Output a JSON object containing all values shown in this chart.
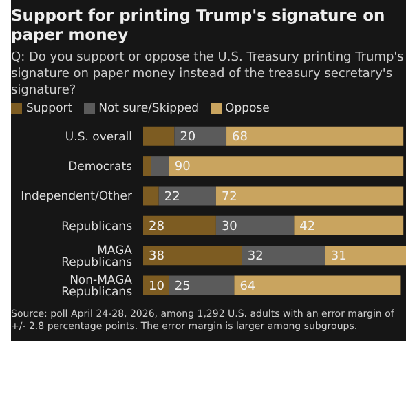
{
  "chart_data": {
    "type": "bar",
    "orientation": "horizontal",
    "stacked": true,
    "title": "Support for printing Trump's signature on paper money",
    "subtitle": "Q: Do you support or oppose the U.S. Treasury printing Trump's signature on paper money instead of the treasury secretary's signature?",
    "categories": [
      "U.S. overall",
      "Democrats",
      "Independent/Other",
      "Republicans",
      "MAGA Republicans",
      "Non-MAGA Republicans"
    ],
    "series": [
      {
        "name": "Support",
        "color": "#7d5c22",
        "values": [
          12,
          3,
          6,
          28,
          38,
          10
        ],
        "value_labels": [
          null,
          null,
          null,
          "28",
          "38",
          "10"
        ]
      },
      {
        "name": "Not sure/Skipped",
        "color": "#5b5b5b",
        "values": [
          20,
          7,
          22,
          30,
          32,
          25
        ],
        "value_labels": [
          "20",
          null,
          "22",
          "30",
          "32",
          "25"
        ]
      },
      {
        "name": "Oppose",
        "color": "#c9a45f",
        "values": [
          68,
          90,
          72,
          42,
          31,
          64
        ],
        "value_labels": [
          "68",
          "90",
          "72",
          "42",
          "31",
          "64"
        ]
      }
    ],
    "legend": "top left",
    "grid": false,
    "annotations": [
      "Source: poll April 24-28, 2026, among 1,292 U.S. adults with an error margin of +/- 2.8 percentage points. The error margin is larger among subgroups."
    ]
  }
}
